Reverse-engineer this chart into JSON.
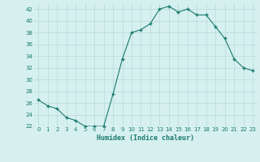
{
  "x": [
    0,
    1,
    2,
    3,
    4,
    5,
    6,
    7,
    8,
    9,
    10,
    11,
    12,
    13,
    14,
    15,
    16,
    17,
    18,
    19,
    20,
    21,
    22,
    23
  ],
  "y": [
    26.5,
    25.5,
    25.0,
    23.5,
    23.0,
    22.0,
    22.0,
    22.0,
    27.5,
    33.5,
    38.0,
    38.5,
    39.5,
    42.0,
    42.5,
    41.5,
    42.0,
    41.0,
    41.0,
    39.0,
    37.0,
    33.5,
    32.0,
    31.5
  ],
  "xlim": [
    -0.5,
    23.5
  ],
  "ylim": [
    22,
    43
  ],
  "yticks": [
    22,
    24,
    26,
    28,
    30,
    32,
    34,
    36,
    38,
    40,
    42
  ],
  "xticks": [
    0,
    1,
    2,
    3,
    4,
    5,
    6,
    7,
    8,
    9,
    10,
    11,
    12,
    13,
    14,
    15,
    16,
    17,
    18,
    19,
    20,
    21,
    22,
    23
  ],
  "xlabel": "Humidex (Indice chaleur)",
  "line_color": "#1a7a6e",
  "marker": "+",
  "bg_color": "#d6f0f0",
  "grid_color": "#b8d8d8",
  "tick_color": "#1a7a6e"
}
